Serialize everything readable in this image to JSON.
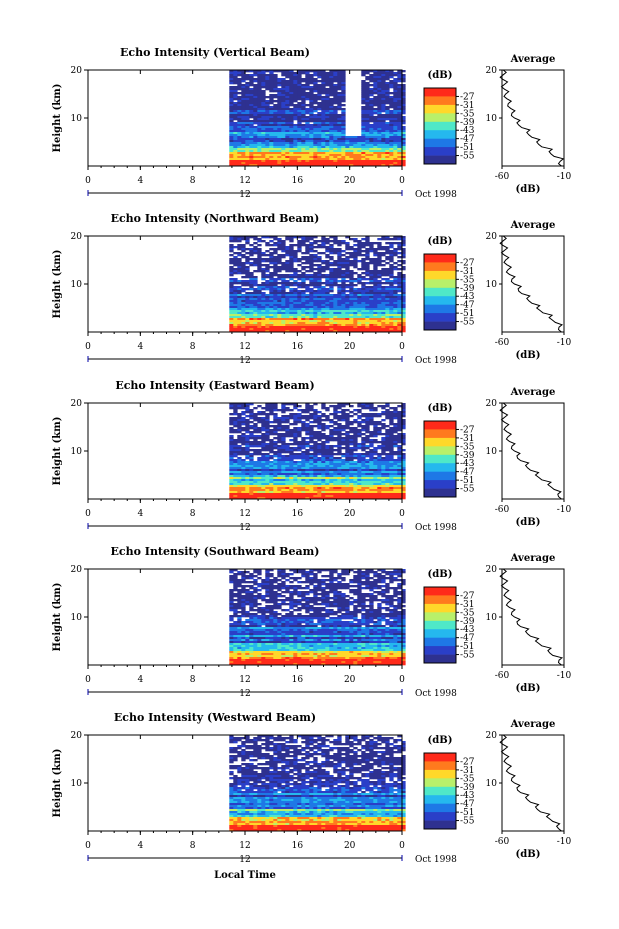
{
  "figure": {
    "x_axis_title": "Local Time",
    "date_label": "Oct 1998",
    "colorbar_title": "(dB)",
    "average_title": "Average",
    "average_xlabel": "(dB)",
    "ylabel": "Height (km)"
  },
  "colors": {
    "colorbar": [
      "#ff2a1a",
      "#ff7a1e",
      "#ffd82a",
      "#b8f06a",
      "#4fe8c8",
      "#25b8ee",
      "#1e78e6",
      "#2a3fc8",
      "#2e3190"
    ]
  },
  "chart_data": [
    {
      "type": "heatmap",
      "title": "Echo Intensity (Vertical Beam)",
      "ylabel": "Height (km)",
      "x_ticks": [
        "0",
        "4",
        "8",
        "12",
        "16",
        "20",
        "0"
      ],
      "x_sub_tick": "12",
      "y_ticks": [
        "20",
        "10"
      ],
      "ylim": [
        0,
        20
      ],
      "data_start_hour": 10.8,
      "colorbar": {
        "label": "(dB)",
        "levels": [
          -27,
          -31,
          -35,
          -39,
          -43,
          -47,
          -51,
          -55
        ]
      },
      "average": {
        "title": "Average",
        "xlabel": "(dB)",
        "x_ticks": [
          "-60",
          "-10"
        ],
        "y_ticks": [
          "20",
          "10"
        ],
        "profile": [
          [
            -12,
            0
          ],
          [
            -13,
            1
          ],
          [
            -18,
            2
          ],
          [
            -22,
            3
          ],
          [
            -28,
            4
          ],
          [
            -32,
            5
          ],
          [
            -36,
            6
          ],
          [
            -40,
            7
          ],
          [
            -44,
            8
          ],
          [
            -48,
            9
          ],
          [
            -50,
            10
          ],
          [
            -52,
            11
          ],
          [
            -53,
            12
          ],
          [
            -55,
            13
          ],
          [
            -56,
            14
          ],
          [
            -57,
            15
          ],
          [
            -58,
            16
          ],
          [
            -58,
            17
          ],
          [
            -59,
            18
          ],
          [
            -59,
            19
          ],
          [
            -59,
            20
          ]
        ]
      }
    },
    {
      "type": "heatmap",
      "title": "Echo Intensity (Northward Beam)",
      "ylabel": "Height (km)",
      "x_ticks": [
        "0",
        "4",
        "8",
        "12",
        "16",
        "20",
        "0"
      ],
      "x_sub_tick": "12",
      "y_ticks": [
        "20",
        "10"
      ],
      "ylim": [
        0,
        20
      ],
      "data_start_hour": 10.8,
      "colorbar": {
        "label": "(dB)",
        "levels": [
          -27,
          -31,
          -35,
          -39,
          -43,
          -47,
          -51,
          -55
        ]
      },
      "average": {
        "title": "Average",
        "xlabel": "(dB)",
        "x_ticks": [
          "-60",
          "-10"
        ],
        "y_ticks": [
          "20",
          "10"
        ],
        "profile": [
          [
            -12,
            0
          ],
          [
            -14,
            1
          ],
          [
            -17,
            2
          ],
          [
            -22,
            3
          ],
          [
            -27,
            4
          ],
          [
            -32,
            5
          ],
          [
            -36,
            6
          ],
          [
            -40,
            7
          ],
          [
            -44,
            8
          ],
          [
            -47,
            9
          ],
          [
            -50,
            10
          ],
          [
            -52,
            11
          ],
          [
            -54,
            12
          ],
          [
            -55,
            13
          ],
          [
            -56,
            14
          ],
          [
            -57,
            15
          ],
          [
            -58,
            16
          ],
          [
            -58,
            17
          ],
          [
            -59,
            18
          ],
          [
            -59,
            19
          ],
          [
            -59,
            20
          ]
        ]
      }
    },
    {
      "type": "heatmap",
      "title": "Echo Intensity (Eastward Beam)",
      "ylabel": "Height (km)",
      "x_ticks": [
        "0",
        "4",
        "8",
        "12",
        "16",
        "20",
        "0"
      ],
      "x_sub_tick": "12",
      "y_ticks": [
        "20",
        "10"
      ],
      "ylim": [
        0,
        20
      ],
      "data_start_hour": 10.8,
      "colorbar": {
        "label": "(dB)",
        "levels": [
          -27,
          -31,
          -35,
          -39,
          -43,
          -47,
          -51,
          -55
        ]
      },
      "average": {
        "title": "Average",
        "xlabel": "(dB)",
        "x_ticks": [
          "-60",
          "-10"
        ],
        "y_ticks": [
          "20",
          "10"
        ],
        "profile": [
          [
            -12,
            0
          ],
          [
            -15,
            1
          ],
          [
            -18,
            2
          ],
          [
            -23,
            3
          ],
          [
            -28,
            4
          ],
          [
            -33,
            5
          ],
          [
            -37,
            6
          ],
          [
            -41,
            7
          ],
          [
            -45,
            8
          ],
          [
            -48,
            9
          ],
          [
            -50,
            10
          ],
          [
            -52,
            11
          ],
          [
            -54,
            12
          ],
          [
            -55,
            13
          ],
          [
            -56,
            14
          ],
          [
            -57,
            15
          ],
          [
            -58,
            16
          ],
          [
            -58,
            17
          ],
          [
            -59,
            18
          ],
          [
            -59,
            19
          ],
          [
            -59,
            20
          ]
        ]
      }
    },
    {
      "type": "heatmap",
      "title": "Echo Intensity (Southward Beam)",
      "ylabel": "Height (km)",
      "x_ticks": [
        "0",
        "4",
        "8",
        "12",
        "16",
        "20",
        "0"
      ],
      "x_sub_tick": "12",
      "y_ticks": [
        "20",
        "10"
      ],
      "ylim": [
        0,
        20
      ],
      "data_start_hour": 10.8,
      "colorbar": {
        "label": "(dB)",
        "levels": [
          -27,
          -31,
          -35,
          -39,
          -43,
          -47,
          -51,
          -55
        ]
      },
      "average": {
        "title": "Average",
        "xlabel": "(dB)",
        "x_ticks": [
          "-60",
          "-10"
        ],
        "y_ticks": [
          "20",
          "10"
        ],
        "profile": [
          [
            -12,
            0
          ],
          [
            -14,
            1
          ],
          [
            -19,
            2
          ],
          [
            -23,
            3
          ],
          [
            -28,
            4
          ],
          [
            -33,
            5
          ],
          [
            -37,
            6
          ],
          [
            -41,
            7
          ],
          [
            -45,
            8
          ],
          [
            -48,
            9
          ],
          [
            -50,
            10
          ],
          [
            -52,
            11
          ],
          [
            -54,
            12
          ],
          [
            -55,
            13
          ],
          [
            -56,
            14
          ],
          [
            -57,
            15
          ],
          [
            -58,
            16
          ],
          [
            -58,
            17
          ],
          [
            -59,
            18
          ],
          [
            -59,
            19
          ],
          [
            -59,
            20
          ]
        ]
      }
    },
    {
      "type": "heatmap",
      "title": "Echo Intensity (Westward Beam)",
      "ylabel": "Height (km)",
      "x_ticks": [
        "0",
        "4",
        "8",
        "12",
        "16",
        "20",
        "0"
      ],
      "x_sub_tick": "12",
      "y_ticks": [
        "20",
        "10"
      ],
      "ylim": [
        0,
        20
      ],
      "data_start_hour": 10.8,
      "colorbar": {
        "label": "(dB)",
        "levels": [
          -27,
          -31,
          -35,
          -39,
          -43,
          -47,
          -51,
          -55
        ]
      },
      "average": {
        "title": "Average",
        "xlabel": "(dB)",
        "x_ticks": [
          "-60",
          "-10"
        ],
        "y_ticks": [
          "20",
          "10"
        ],
        "profile": [
          [
            -12,
            0
          ],
          [
            -16,
            1
          ],
          [
            -19,
            2
          ],
          [
            -24,
            3
          ],
          [
            -29,
            4
          ],
          [
            -33,
            5
          ],
          [
            -37,
            6
          ],
          [
            -41,
            7
          ],
          [
            -45,
            8
          ],
          [
            -48,
            9
          ],
          [
            -50,
            10
          ],
          [
            -52,
            11
          ],
          [
            -54,
            12
          ],
          [
            -55,
            13
          ],
          [
            -56,
            14
          ],
          [
            -57,
            15
          ],
          [
            -58,
            16
          ],
          [
            -58,
            17
          ],
          [
            -59,
            18
          ],
          [
            -59,
            19
          ],
          [
            -59,
            20
          ]
        ]
      }
    }
  ]
}
